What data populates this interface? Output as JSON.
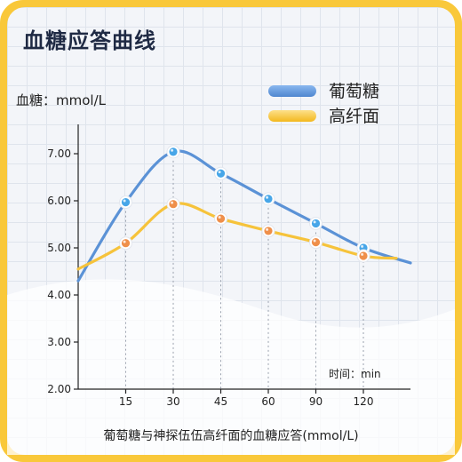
{
  "title": "血糖应答曲线",
  "y_unit_label": "血糖：mmol/L",
  "x_unit_label": "时间：min",
  "caption": "葡萄糖与神探伍伍高纤面的血糖应答(mmol/L)",
  "colors": {
    "frame": "#f9c83a",
    "glucose": "#5b92d6",
    "fiber_noodle": "#f6c33b",
    "glucose_marker": "#47a6e8",
    "fiber_marker": "#ef8f4a",
    "wave": "#e9edf3"
  },
  "chart_data": {
    "type": "line",
    "title": "血糖应答曲线",
    "xlabel": "时间：min",
    "ylabel": "血糖：mmol/L",
    "x_ticks": [
      15,
      30,
      45,
      60,
      90,
      120
    ],
    "y_ticks": [
      "2.00",
      "3.00",
      "4.00",
      "5.00",
      "6.00",
      "7.00"
    ],
    "ylim": [
      2.0,
      7.5
    ],
    "legend_position": "top-right",
    "series": [
      {
        "name": "葡萄糖",
        "color": "#5b92d6",
        "points": [
          {
            "x": 15,
            "y": 5.97
          },
          {
            "x": 30,
            "y": 7.04
          },
          {
            "x": 45,
            "y": 6.58
          },
          {
            "x": 60,
            "y": 6.04
          },
          {
            "x": 90,
            "y": 5.52
          },
          {
            "x": 120,
            "y": 5.0
          }
        ]
      },
      {
        "name": "高纤面",
        "color": "#f6c33b",
        "points": [
          {
            "x": 15,
            "y": 5.1
          },
          {
            "x": 30,
            "y": 5.93
          },
          {
            "x": 45,
            "y": 5.62
          },
          {
            "x": 60,
            "y": 5.36
          },
          {
            "x": 90,
            "y": 5.12
          },
          {
            "x": 120,
            "y": 4.83
          }
        ]
      }
    ]
  }
}
